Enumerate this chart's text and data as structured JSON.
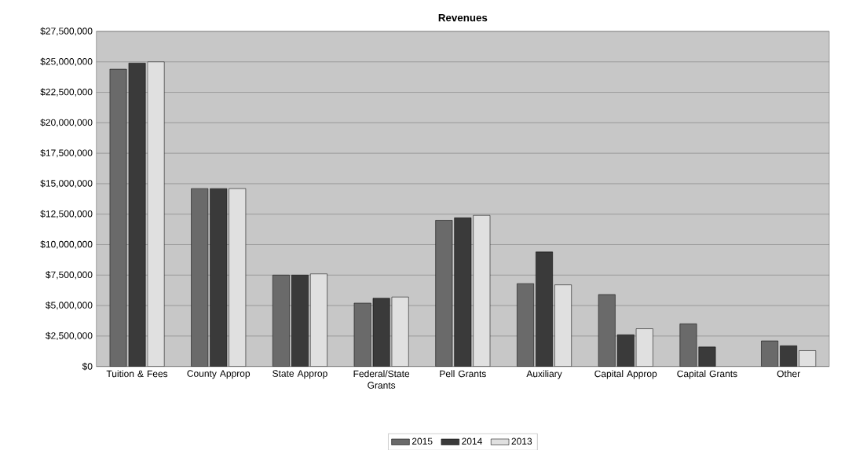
{
  "chart_data": {
    "type": "bar",
    "title": "Revenues",
    "categories": [
      "Tuition & Fees",
      "County Approp",
      "State Approp",
      "Federal/State Grants",
      "Pell Grants",
      "Auxiliary",
      "Capital Approp",
      "Capital Grants",
      "Other"
    ],
    "series": [
      {
        "name": "2015",
        "color": "#6a6a6a",
        "values": [
          24400000,
          14600000,
          7500000,
          5200000,
          12000000,
          6800000,
          5900000,
          3500000,
          2100000
        ]
      },
      {
        "name": "2014",
        "color": "#3a3a3a",
        "values": [
          24900000,
          14600000,
          7500000,
          5600000,
          12200000,
          9400000,
          2600000,
          1600000,
          1700000
        ]
      },
      {
        "name": "2013",
        "color": "#e0e0e0",
        "values": [
          25000000,
          14600000,
          7600000,
          5700000,
          12400000,
          6700000,
          3100000,
          null,
          1300000
        ]
      }
    ],
    "ylim": [
      0,
      27500000
    ],
    "yticks": [
      {
        "value": 0,
        "label": "$0"
      },
      {
        "value": 2500000,
        "label": "$2,500,000"
      },
      {
        "value": 5000000,
        "label": "$5,000,000"
      },
      {
        "value": 7500000,
        "label": "$7,500,000"
      },
      {
        "value": 10000000,
        "label": "$10,000,000"
      },
      {
        "value": 12500000,
        "label": "$12,500,000"
      },
      {
        "value": 15000000,
        "label": "$15,000,000"
      },
      {
        "value": 17500000,
        "label": "$17,500,000"
      },
      {
        "value": 20000000,
        "label": "$20,000,000"
      },
      {
        "value": 22500000,
        "label": "$22,500,000"
      },
      {
        "value": 25000000,
        "label": "$25,000,000"
      },
      {
        "value": 27500000,
        "label": "$27,500,000"
      }
    ],
    "grid": "y",
    "legend": "bottom"
  }
}
